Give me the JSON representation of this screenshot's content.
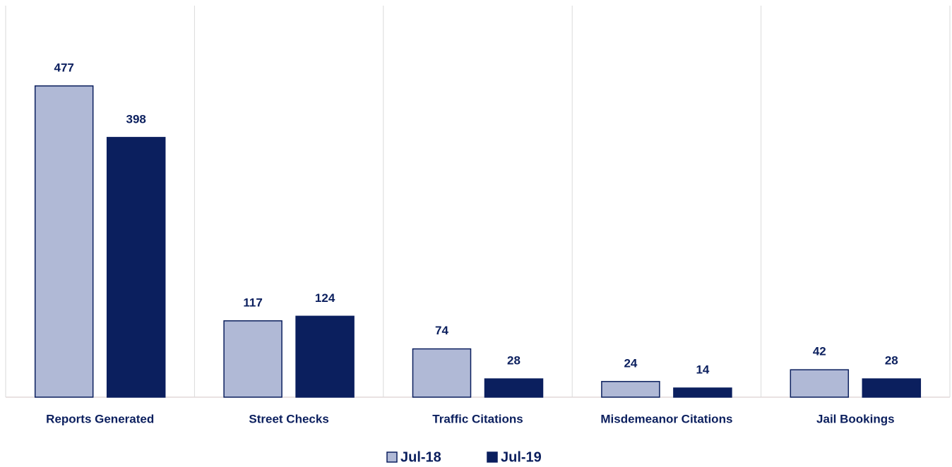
{
  "chart_data": {
    "type": "bar",
    "categories": [
      "Reports Generated",
      "Street Checks",
      "Traffic Citations",
      "Misdemeanor Citations",
      "Jail Bookings"
    ],
    "series": [
      {
        "name": "Jul-18",
        "color": "#b0b9d6",
        "values": [
          477,
          117,
          74,
          24,
          42
        ]
      },
      {
        "name": "Jul-19",
        "color": "#0b1f5e",
        "values": [
          398,
          124,
          28,
          14,
          28
        ]
      }
    ],
    "legend": "bottom"
  }
}
